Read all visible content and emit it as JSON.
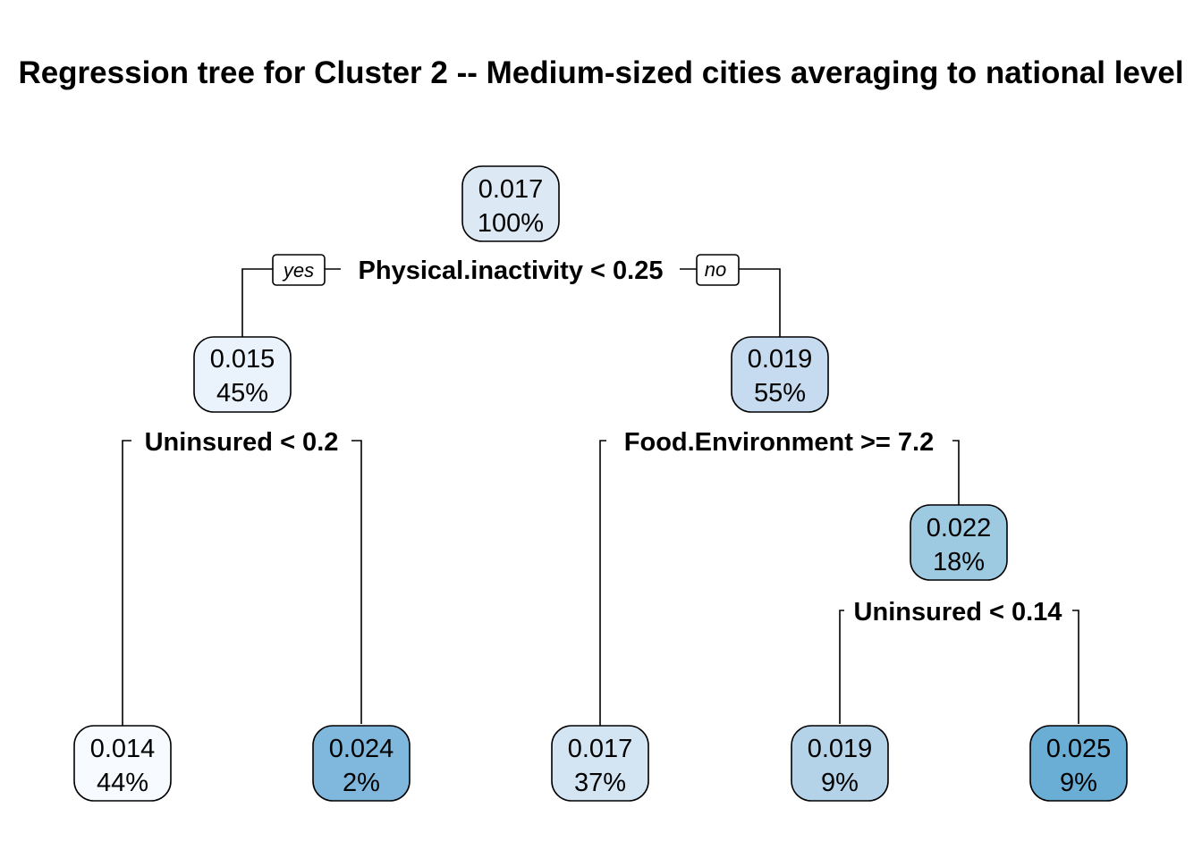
{
  "title": "Regression tree for Cluster 2 -- Medium-sized cities averaging to national level",
  "branch_labels": {
    "yes": "yes",
    "no": "no"
  },
  "splits": {
    "root": "Physical.inactivity < 0.25",
    "left": "Uninsured < 0.2",
    "right": "Food.Environment >= 7.2",
    "right_right": "Uninsured < 0.14"
  },
  "nodes": {
    "n1": {
      "value": "0.017",
      "pct": "100%",
      "fill": "#dce9f5"
    },
    "n2": {
      "value": "0.015",
      "pct": "45%",
      "fill": "#eaf2fb"
    },
    "n3": {
      "value": "0.019",
      "pct": "55%",
      "fill": "#c6dbef"
    },
    "n4": {
      "value": "0.014",
      "pct": "44%",
      "fill": "#f7fbff"
    },
    "n5": {
      "value": "0.024",
      "pct": "2%",
      "fill": "#7fb8dc"
    },
    "n6": {
      "value": "0.017",
      "pct": "37%",
      "fill": "#d3e4f3"
    },
    "n7": {
      "value": "0.022",
      "pct": "18%",
      "fill": "#9ecae1"
    },
    "n8": {
      "value": "0.019",
      "pct": "9%",
      "fill": "#b4d3e8"
    },
    "n9": {
      "value": "0.025",
      "pct": "9%",
      "fill": "#6aaed6"
    }
  }
}
